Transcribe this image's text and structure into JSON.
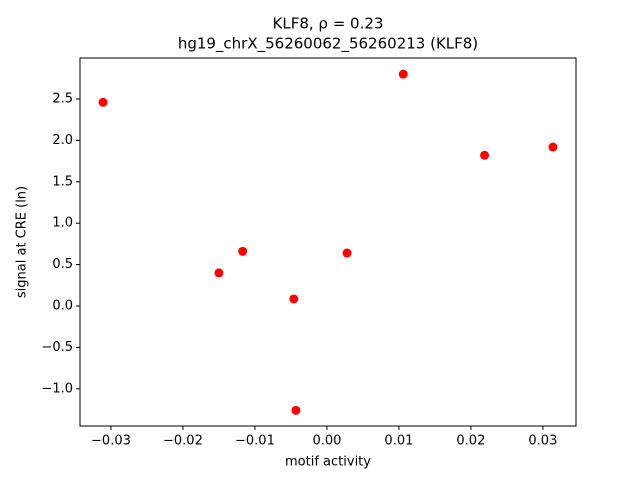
{
  "chart_data": {
    "type": "scatter",
    "title": "KLF8, ρ = 0.23",
    "subtitle": "hg19_chrX_56260062_56260213 (KLF8)",
    "x_label": "motif activity",
    "y_label": "signal at CRE (ln)",
    "color": "#ff0000",
    "x": [
      -0.0311,
      -0.015,
      -0.0117,
      -0.0046,
      -0.0043,
      0.0028,
      0.0106,
      0.0219,
      0.0314
    ],
    "values": [
      2.46,
      0.4,
      0.66,
      0.085,
      -1.26,
      0.64,
      2.8,
      1.82,
      1.92
    ],
    "xlim": [
      -0.0343,
      0.0346
    ],
    "ylim": [
      -1.449,
      2.995
    ],
    "xticks": [
      {
        "value": -0.03,
        "label": "−0.03"
      },
      {
        "value": -0.02,
        "label": "−0.02"
      },
      {
        "value": -0.01,
        "label": "−0.01"
      },
      {
        "value": 0,
        "label": "0.00"
      },
      0.01,
      0.02,
      0.03
    ],
    "yticks": [
      {
        "value": -1,
        "label": "−1.0"
      },
      {
        "value": -0.5,
        "label": "−0.5"
      },
      {
        "value": 0,
        "label": "0.0"
      },
      0.5,
      {
        "value": 1,
        "label": "1.0"
      },
      1.5,
      {
        "value": 2,
        "label": "2.0"
      },
      2.5
    ],
    "grid": false
  }
}
